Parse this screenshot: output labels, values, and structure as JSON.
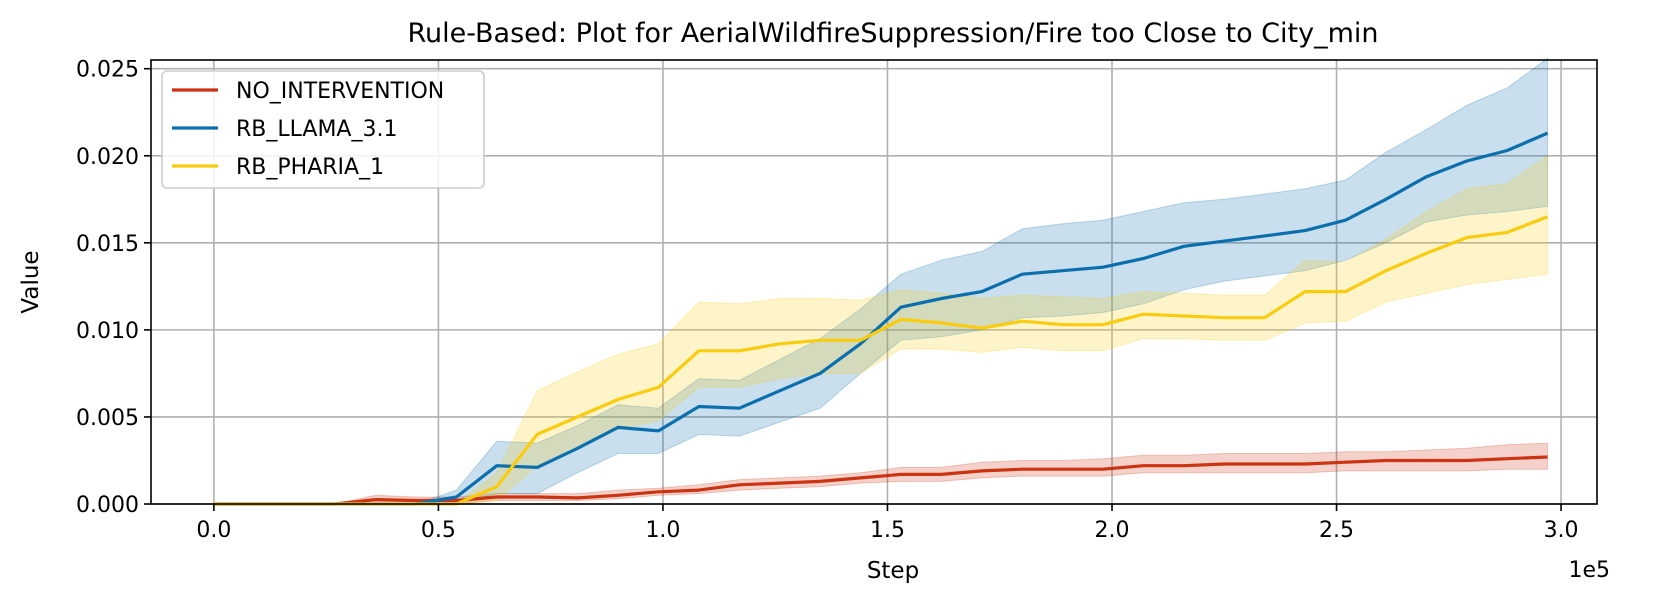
{
  "chart_data": {
    "type": "line",
    "title": "Rule-Based: Plot for AerialWildfireSuppression/Fire too Close to City_min",
    "xlabel": "Step",
    "ylabel": "Value",
    "x_offset_label": "1e5",
    "xlim": [
      -0.14,
      3.08
    ],
    "ylim": [
      0,
      0.0255
    ],
    "x_ticks": [
      0.0,
      0.5,
      1.0,
      1.5,
      2.0,
      2.5,
      3.0
    ],
    "x_tick_labels": [
      "0.0",
      "0.5",
      "1.0",
      "1.5",
      "2.0",
      "2.5",
      "3.0"
    ],
    "y_ticks": [
      0.0,
      0.005,
      0.01,
      0.015,
      0.02,
      0.025
    ],
    "y_tick_labels": [
      "0.000",
      "0.005",
      "0.010",
      "0.015",
      "0.020",
      "0.025"
    ],
    "grid": true,
    "legend_position": "top-left",
    "x": [
      0.0,
      0.09,
      0.18,
      0.27,
      0.36,
      0.45,
      0.54,
      0.63,
      0.72,
      0.81,
      0.9,
      0.99,
      1.08,
      1.17,
      1.26,
      1.35,
      1.44,
      1.53,
      1.62,
      1.71,
      1.8,
      1.89,
      1.98,
      2.07,
      2.16,
      2.25,
      2.34,
      2.43,
      2.52,
      2.61,
      2.7,
      2.79,
      2.88,
      2.97
    ],
    "series": [
      {
        "name": "NO_INTERVENTION",
        "color": "#cc3311",
        "values": [
          0.0,
          0.0,
          0.0,
          0.0,
          0.00025,
          0.0002,
          0.0002,
          0.0004,
          0.0004,
          0.00035,
          0.0005,
          0.0007,
          0.0008,
          0.0011,
          0.0012,
          0.0013,
          0.0015,
          0.0017,
          0.0017,
          0.0019,
          0.002,
          0.002,
          0.002,
          0.0022,
          0.0022,
          0.0023,
          0.0023,
          0.0023,
          0.0024,
          0.0025,
          0.0025,
          0.0025,
          0.0026,
          0.0027
        ],
        "lower": [
          0.0,
          0.0,
          0.0,
          0.0,
          0.0,
          0.0,
          0.0,
          0.0002,
          0.0002,
          0.0002,
          0.0003,
          0.0005,
          0.0006,
          0.0008,
          0.0009,
          0.001,
          0.0012,
          0.0013,
          0.0013,
          0.0015,
          0.0016,
          0.0016,
          0.0016,
          0.0018,
          0.0018,
          0.0018,
          0.0018,
          0.0018,
          0.0019,
          0.0019,
          0.0019,
          0.0019,
          0.002,
          0.002
        ],
        "upper": [
          0.0,
          0.0,
          0.0,
          0.0,
          0.0005,
          0.0004,
          0.0004,
          0.0006,
          0.0006,
          0.0006,
          0.0008,
          0.0009,
          0.0011,
          0.0014,
          0.0015,
          0.0016,
          0.0018,
          0.0021,
          0.0021,
          0.0024,
          0.0025,
          0.0025,
          0.0026,
          0.0028,
          0.0028,
          0.0029,
          0.0029,
          0.0029,
          0.003,
          0.003,
          0.0031,
          0.0032,
          0.0034,
          0.0035
        ]
      },
      {
        "name": "RB_LLAMA_3.1",
        "color": "#0b6ead",
        "values": [
          0.0,
          0.0,
          0.0,
          0.0,
          0.0,
          0.0,
          0.0004,
          0.0022,
          0.0021,
          0.0032,
          0.0044,
          0.0042,
          0.0056,
          0.0055,
          0.0065,
          0.0075,
          0.0092,
          0.0113,
          0.0118,
          0.0122,
          0.0132,
          0.0134,
          0.0136,
          0.0141,
          0.0148,
          0.0151,
          0.0154,
          0.0157,
          0.0163,
          0.0175,
          0.0188,
          0.0197,
          0.0203,
          0.0213
        ],
        "lower": [
          0.0,
          0.0,
          0.0,
          0.0,
          0.0,
          0.0,
          0.0,
          0.0006,
          0.0006,
          0.0018,
          0.0029,
          0.0029,
          0.004,
          0.0039,
          0.0047,
          0.0055,
          0.0075,
          0.0094,
          0.0096,
          0.01,
          0.0107,
          0.0108,
          0.011,
          0.0115,
          0.0123,
          0.0128,
          0.0131,
          0.0134,
          0.014,
          0.015,
          0.0162,
          0.0166,
          0.0168,
          0.0171
        ],
        "upper": [
          0.0,
          0.0,
          0.0,
          0.0,
          0.0,
          0.0,
          0.0008,
          0.0036,
          0.0035,
          0.0045,
          0.0057,
          0.0055,
          0.0072,
          0.0071,
          0.0083,
          0.0095,
          0.0112,
          0.0132,
          0.014,
          0.0145,
          0.0158,
          0.0161,
          0.0163,
          0.0168,
          0.0173,
          0.0175,
          0.0178,
          0.0181,
          0.0186,
          0.0202,
          0.0215,
          0.0229,
          0.0239,
          0.0256
        ]
      },
      {
        "name": "RB_PHARIA_1",
        "color": "#f9cc0f",
        "values": [
          0.0,
          0.0,
          0.0,
          0.0,
          0.0,
          0.0,
          0.0,
          0.001,
          0.004,
          0.005,
          0.006,
          0.0067,
          0.0088,
          0.0088,
          0.0092,
          0.0094,
          0.0094,
          0.0106,
          0.0104,
          0.0101,
          0.0105,
          0.0103,
          0.0103,
          0.0109,
          0.0108,
          0.0107,
          0.0107,
          0.0122,
          0.0122,
          0.0134,
          0.0144,
          0.0153,
          0.0156,
          0.0165
        ],
        "lower": [
          0.0,
          0.0,
          0.0,
          0.0,
          0.0,
          0.0,
          0.0,
          0.0002,
          0.0022,
          0.0032,
          0.0043,
          0.0048,
          0.0067,
          0.0067,
          0.0072,
          0.0075,
          0.0075,
          0.0089,
          0.0089,
          0.0087,
          0.009,
          0.0088,
          0.0088,
          0.0095,
          0.0095,
          0.0094,
          0.0094,
          0.0104,
          0.0105,
          0.0116,
          0.0121,
          0.0126,
          0.0129,
          0.0132
        ],
        "upper": [
          0.0,
          0.0,
          0.0,
          0.0,
          0.0,
          0.0,
          0.0,
          0.0018,
          0.0065,
          0.0076,
          0.0086,
          0.0092,
          0.0116,
          0.0115,
          0.0118,
          0.0118,
          0.0117,
          0.0123,
          0.0121,
          0.0118,
          0.012,
          0.0119,
          0.0118,
          0.0122,
          0.0121,
          0.012,
          0.012,
          0.014,
          0.0139,
          0.0152,
          0.0168,
          0.0181,
          0.0184,
          0.02
        ]
      }
    ]
  }
}
